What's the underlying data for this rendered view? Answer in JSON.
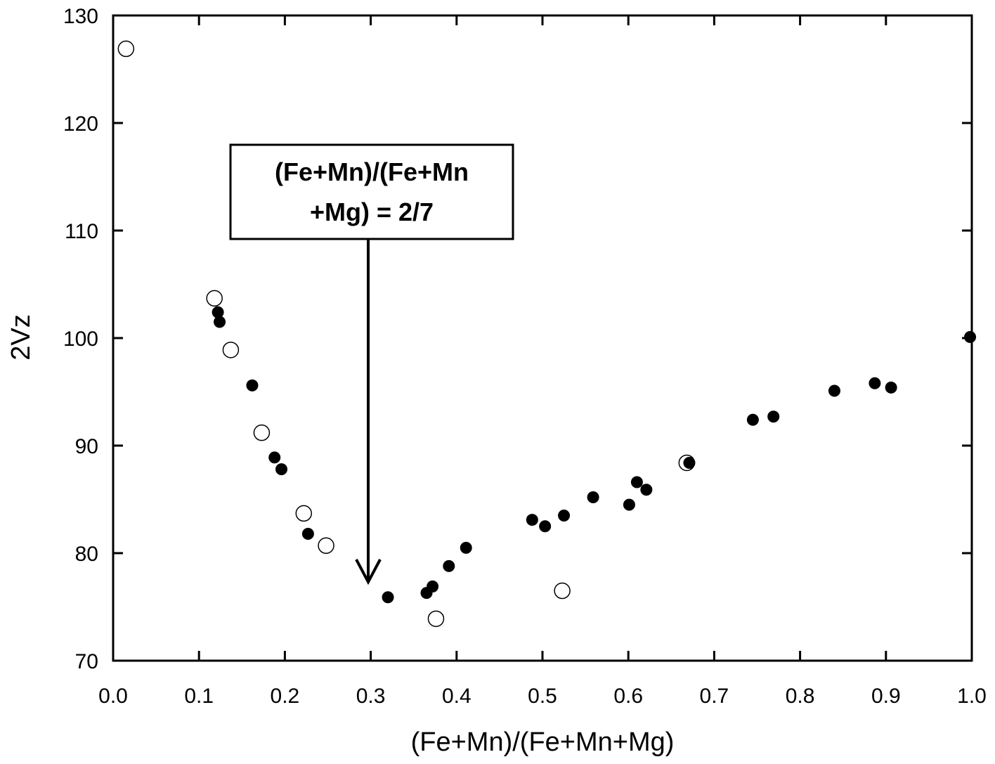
{
  "chart_data": {
    "type": "scatter",
    "xlabel": "(Fe+Mn)/(Fe+Mn+Mg)",
    "ylabel": "2Vz",
    "xlim": [
      0,
      1
    ],
    "ylim": [
      70,
      130
    ],
    "xticks": [
      {
        "value": 0,
        "label": "0.0"
      },
      0.1,
      0.2,
      0.3,
      0.4,
      0.5,
      0.6,
      0.7,
      0.8,
      0.9,
      {
        "value": 1,
        "label": "1.0"
      }
    ],
    "yticks": [
      70,
      80,
      90,
      100,
      110,
      120,
      130
    ],
    "annotation": {
      "lines": [
        "(Fe+Mn)/(Fe+Mn",
        "+Mg) = 2/7"
      ]
    },
    "series": [
      {
        "color": "#ffffff",
        "x": [
          0.015,
          0.118,
          0.137,
          0.173,
          0.222,
          0.248,
          0.376,
          0.523,
          0.668
        ],
        "values": [
          126.9,
          103.7,
          98.9,
          91.2,
          83.7,
          80.7,
          73.9,
          76.5,
          88.4
        ]
      },
      {
        "color": "#000000",
        "x": [
          0.122,
          0.124,
          0.162,
          0.188,
          0.196,
          0.227,
          0.32,
          0.365,
          0.372,
          0.391,
          0.411,
          0.488,
          0.503,
          0.525,
          0.559,
          0.601,
          0.61,
          0.621,
          0.671,
          0.745,
          0.769,
          0.84,
          0.887,
          0.906,
          0.998
        ],
        "values": [
          102.4,
          101.5,
          95.6,
          88.9,
          87.8,
          81.8,
          75.9,
          76.3,
          76.9,
          78.8,
          80.5,
          83.1,
          82.5,
          83.5,
          85.2,
          84.5,
          86.6,
          85.9,
          88.4,
          92.4,
          92.7,
          95.1,
          95.8,
          95.4,
          100.1
        ]
      }
    ]
  }
}
